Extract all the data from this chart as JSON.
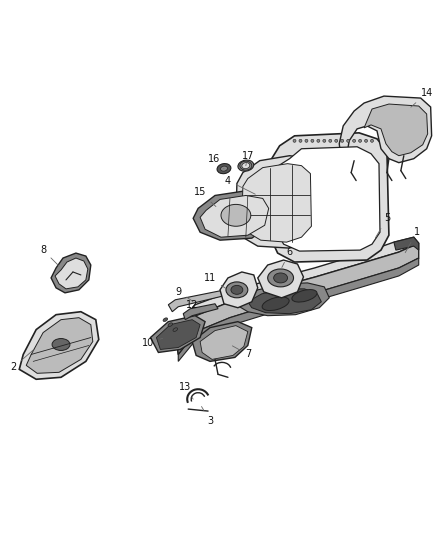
{
  "background_color": "#ffffff",
  "fig_width": 4.38,
  "fig_height": 5.33,
  "dpi": 100,
  "label_fontsize": 7.0,
  "label_color": "#111111",
  "line_color": "#666666",
  "line_width": 0.5,
  "gray_dark": "#555555",
  "gray_mid": "#888888",
  "gray_light": "#bbbbbb",
  "gray_vlight": "#dedede",
  "black": "#222222",
  "white": "#ffffff"
}
